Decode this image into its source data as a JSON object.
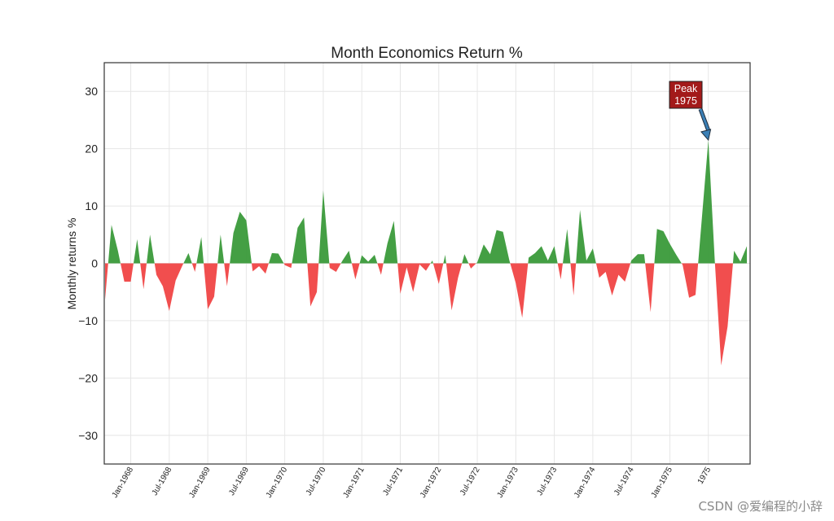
{
  "chart_data": {
    "type": "area",
    "title": "Month Economics Return %",
    "xlabel": "",
    "ylabel": "Monthly returns %",
    "ylim": [
      -35,
      35
    ],
    "yticks": [
      -30,
      -20,
      -10,
      0,
      10,
      20,
      30
    ],
    "x_start": "Sep-1967",
    "x_end": "Jul-1975",
    "x_tick_labels": [
      "Jan-1968",
      "Jul-1968",
      "Jan-1969",
      "Jul-1969",
      "Jan-1970",
      "Jul-1970",
      "Jan-1971",
      "Jul-1971",
      "Jan-1972",
      "Jul-1972",
      "Jan-1973",
      "Jul-1973",
      "Jan-1974",
      "Jul-1974",
      "Jan-1975",
      "1975"
    ],
    "grid": true,
    "positive_color": "#3a9a3a",
    "negative_color": "#f04545",
    "series": [
      {
        "values": [
          -6.3,
          6.7,
          2.2,
          -3.2,
          -3.2,
          4.2,
          -4.5,
          5.0,
          -2.0,
          -4.0,
          -8.3,
          -3.0,
          -0.5,
          1.8,
          -1.5,
          4.6,
          -8.0,
          -5.8,
          5.0,
          -4.0,
          5.3,
          9.0,
          7.5,
          -1.4,
          -0.5,
          -1.8,
          1.8,
          1.7,
          -0.3,
          -0.8,
          6.2,
          8.0,
          -7.5,
          -5.0,
          12.7,
          -0.8,
          -1.5,
          0.5,
          2.2,
          -2.8,
          1.4,
          0.3,
          1.5,
          -2.0,
          3.5,
          7.4,
          -5.3,
          -0.7,
          -5.0,
          -0.2,
          -1.3,
          0.5,
          -3.6,
          1.5,
          -8.2,
          -2.5,
          1.6,
          -0.9,
          0.2,
          3.3,
          1.6,
          5.8,
          5.5,
          0.5,
          -3.5,
          -9.5,
          1.0,
          1.8,
          3.0,
          0.5,
          3.0,
          -2.8,
          6.0,
          -5.6,
          9.3,
          0.5,
          2.6,
          -2.5,
          -1.5,
          -5.6,
          -2.0,
          -3.2,
          0.5,
          1.6,
          1.6,
          -8.5,
          6.0,
          5.6,
          3.4,
          1.5,
          -0.3,
          -6.0,
          -5.5,
          8.0,
          21.5,
          0.5,
          -17.8,
          -11.0,
          2.2,
          0.3,
          3.0
        ]
      }
    ],
    "annotations": [
      {
        "line1": "Peak",
        "line2": "1975",
        "x_index": 94,
        "y": 21.5
      }
    ]
  },
  "watermark": "CSDN @爱编程的小辞"
}
